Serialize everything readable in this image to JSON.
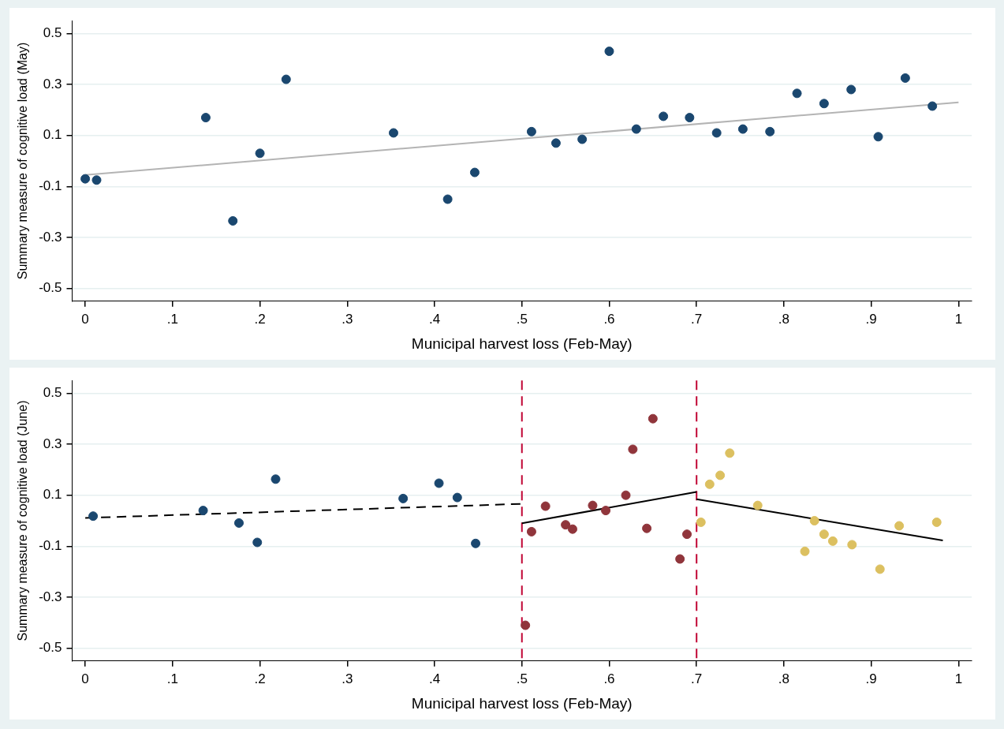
{
  "chart_data": [
    {
      "type": "scatter",
      "xlabel": "Municipal harvest loss (Feb-May)",
      "ylabel": "Summary measure of cognitive load (May)",
      "xlim": [
        -0.015,
        1.015
      ],
      "ylim": [
        -0.55,
        0.55
      ],
      "xticks": [
        {
          "value": 0,
          "label": "0"
        },
        {
          "value": 0.1,
          "label": ".1"
        },
        {
          "value": 0.2,
          "label": ".2"
        },
        {
          "value": 0.3,
          "label": ".3"
        },
        {
          "value": 0.4,
          "label": ".4"
        },
        {
          "value": 0.5,
          "label": ".5"
        },
        {
          "value": 0.6,
          "label": ".6"
        },
        {
          "value": 0.7,
          "label": ".7"
        },
        {
          "value": 0.8,
          "label": ".8"
        },
        {
          "value": 0.9,
          "label": ".9"
        },
        {
          "value": 1,
          "label": "1"
        }
      ],
      "yticks": [
        -0.5,
        -0.3,
        -0.1,
        0.1,
        0.3,
        0.5
      ],
      "grid": "y",
      "marker": "circle",
      "series": [
        {
          "color": "#1a476f",
          "x": [
            0,
            0.013,
            0.138,
            0.169,
            0.2,
            0.23,
            0.353,
            0.415,
            0.446,
            0.511,
            0.539,
            0.569,
            0.6,
            0.631,
            0.662,
            0.692,
            0.723,
            0.753,
            0.784,
            0.815,
            0.846,
            0.877,
            0.908,
            0.939,
            0.97
          ],
          "values": [
            -0.07,
            -0.075,
            0.17,
            -0.235,
            0.03,
            0.32,
            0.11,
            -0.15,
            -0.045,
            0.115,
            0.07,
            0.085,
            0.43,
            0.125,
            0.175,
            0.17,
            0.11,
            0.125,
            0.115,
            0.265,
            0.225,
            0.28,
            0.095,
            0.325,
            0.215
          ]
        },
        {
          "type": "line",
          "marker": "none",
          "color": "#b4b4b4",
          "x": [
            0,
            1
          ],
          "values": [
            -0.055,
            0.23
          ]
        }
      ]
    },
    {
      "type": "scatter",
      "xlabel": "Municipal harvest loss (Feb-May)",
      "ylabel": "Summary measure of cognitive load (June)",
      "xlim": [
        -0.015,
        1.015
      ],
      "ylim": [
        -0.55,
        0.55
      ],
      "xticks": [
        {
          "value": 0,
          "label": "0"
        },
        {
          "value": 0.1,
          "label": ".1"
        },
        {
          "value": 0.2,
          "label": ".2"
        },
        {
          "value": 0.3,
          "label": ".3"
        },
        {
          "value": 0.4,
          "label": ".4"
        },
        {
          "value": 0.5,
          "label": ".5"
        },
        {
          "value": 0.6,
          "label": ".6"
        },
        {
          "value": 0.7,
          "label": ".7"
        },
        {
          "value": 0.8,
          "label": ".8"
        },
        {
          "value": 0.9,
          "label": ".9"
        },
        {
          "value": 1,
          "label": "1"
        }
      ],
      "yticks": [
        -0.5,
        -0.3,
        -0.1,
        0.1,
        0.3,
        0.5
      ],
      "grid": "y",
      "marker": "circle",
      "ref_lines": [
        {
          "axis": "x",
          "value": 0.5,
          "color": "#c10534",
          "line_style": "dashed"
        },
        {
          "axis": "x",
          "value": 0.7,
          "color": "#c10534",
          "line_style": "dashed"
        }
      ],
      "series": [
        {
          "color": "#1a476f",
          "x": [
            0.009,
            0.135,
            0.176,
            0.197,
            0.218,
            0.364,
            0.405,
            0.426,
            0.447
          ],
          "values": [
            0.018,
            0.04,
            -0.009,
            -0.085,
            0.163,
            0.087,
            0.147,
            0.091,
            -0.089
          ]
        },
        {
          "color": "#90353b",
          "x": [
            0.504,
            0.511,
            0.527,
            0.55,
            0.558,
            0.581,
            0.596,
            0.619,
            0.627,
            0.643,
            0.65,
            0.681,
            0.689
          ],
          "values": [
            -0.41,
            -0.043,
            0.057,
            -0.016,
            -0.033,
            0.06,
            0.04,
            0.1,
            0.28,
            -0.03,
            0.4,
            -0.15,
            -0.053
          ]
        },
        {
          "color": "#dcc060",
          "x": [
            0.705,
            0.715,
            0.727,
            0.738,
            0.77,
            0.824,
            0.835,
            0.846,
            0.856,
            0.878,
            0.91,
            0.932,
            0.975
          ],
          "values": [
            -0.006,
            0.143,
            0.178,
            0.265,
            0.06,
            -0.12,
            0,
            -0.053,
            -0.08,
            -0.094,
            -0.19,
            -0.02,
            -0.006
          ]
        },
        {
          "type": "line",
          "marker": "none",
          "line_style": "dashed",
          "color": "#000000",
          "x": [
            0,
            0.5
          ],
          "values": [
            0.011,
            0.066
          ]
        },
        {
          "type": "line",
          "marker": "none",
          "line_style": "solid",
          "color": "#000000",
          "x": [
            0.5,
            0.7
          ],
          "values": [
            -0.01,
            0.113
          ]
        },
        {
          "type": "line",
          "marker": "none",
          "line_style": "solid",
          "color": "#000000",
          "x": [
            0.7,
            0.982
          ],
          "values": [
            0.084,
            -0.077
          ]
        }
      ]
    }
  ]
}
